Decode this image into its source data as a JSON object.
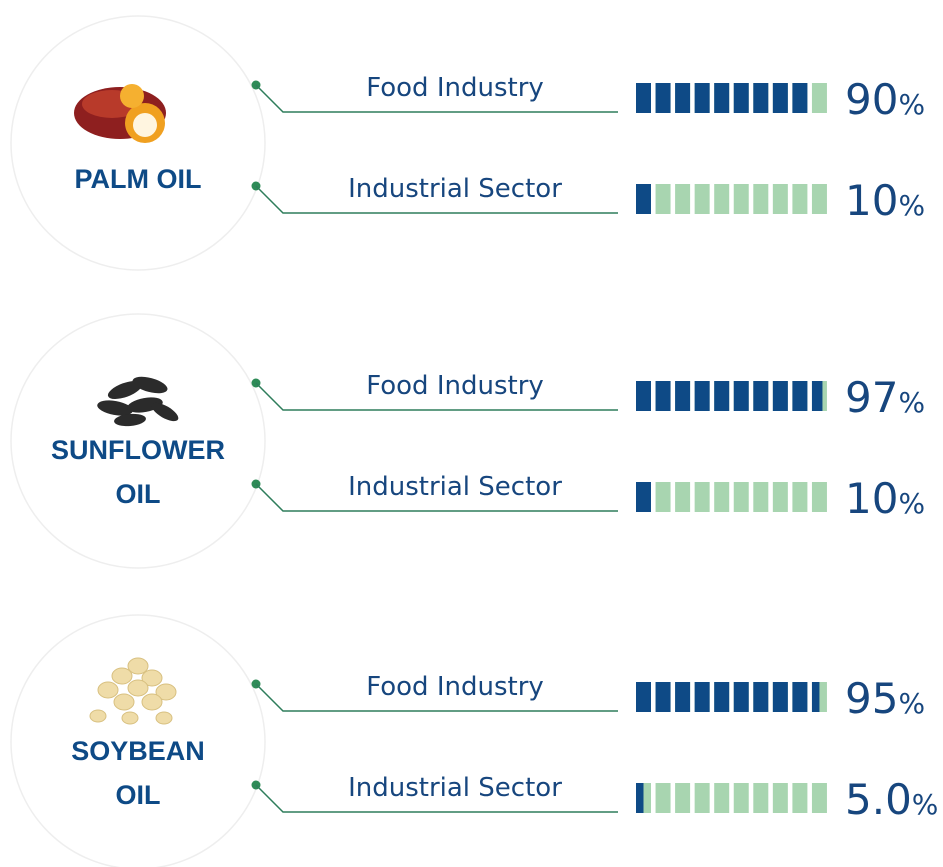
{
  "oils": [
    {
      "name_lines": [
        "PALM OIL"
      ],
      "uses": [
        {
          "label": "Food Industry",
          "value": 90,
          "value_label": "90%"
        },
        {
          "label": "Industrial Sector",
          "value": 10,
          "value_label": "10%"
        }
      ]
    },
    {
      "name_lines": [
        "SUNFLOWER",
        "OIL"
      ],
      "uses": [
        {
          "label": "Food Industry",
          "value": 97,
          "value_label": "97%"
        },
        {
          "label": "Industrial Sector",
          "value": 10,
          "value_label": "10%"
        }
      ]
    },
    {
      "name_lines": [
        "SOYBEAN",
        "OIL"
      ],
      "uses": [
        {
          "label": "Food Industry",
          "value": 95,
          "value_label": "95%"
        },
        {
          "label": "Industrial Sector",
          "value": 5,
          "value_label": "5.0%"
        }
      ]
    }
  ]
}
